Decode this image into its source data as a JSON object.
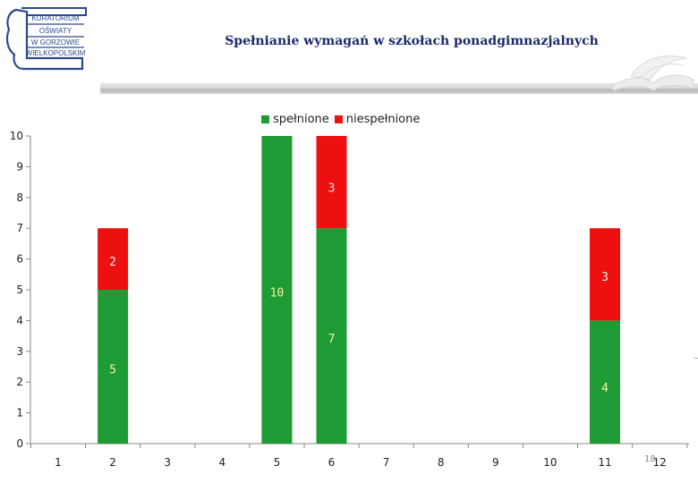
{
  "logo": {
    "lines": [
      "KURATORIUM",
      "OŚWIATY",
      "W GORZOWIE",
      "WIELKOPOLSKIM"
    ]
  },
  "header": {
    "title": "Spełnianie wymagań w szkołach ponadgimnazjalnych"
  },
  "page_number": "18",
  "colors": {
    "met": "#1e9b34",
    "unmet": "#ee0f0f",
    "title": "#1d2a6b"
  },
  "chart_data": {
    "type": "bar",
    "stacked": true,
    "title": "Spełnianie wymagań w szkołach ponadgimnazjalnych",
    "categories": [
      "1",
      "2",
      "3",
      "4",
      "5",
      "6",
      "7",
      "8",
      "9",
      "10",
      "11",
      "12"
    ],
    "series": [
      {
        "name": "spełnione",
        "color": "#1e9b34",
        "values": [
          0,
          5,
          0,
          0,
          10,
          7,
          0,
          0,
          0,
          0,
          4,
          0
        ]
      },
      {
        "name": "niespełnione",
        "color": "#ee0f0f",
        "values": [
          0,
          2,
          0,
          0,
          0,
          3,
          0,
          0,
          0,
          0,
          3,
          0
        ]
      }
    ],
    "ylim": [
      0,
      10
    ],
    "yticks": [
      "0",
      "1",
      "2",
      "3",
      "4",
      "5",
      "6",
      "7",
      "8",
      "9",
      "10"
    ],
    "grid": false,
    "legend": "top-center",
    "data_labels": true
  }
}
